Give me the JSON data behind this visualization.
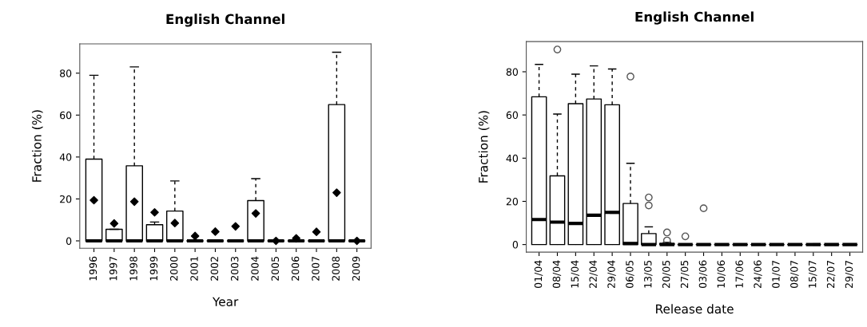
{
  "chart_data": [
    {
      "type": "box",
      "title": "English Channel",
      "xlabel": "Year",
      "ylabel": "Fraction (%)",
      "ylim": [
        -3.5,
        94
      ],
      "yticks": [
        0,
        20,
        40,
        60,
        80
      ],
      "grid": false,
      "categories": [
        "1996",
        "1997",
        "1998",
        "1999",
        "2000",
        "2001",
        "2002",
        "2003",
        "2004",
        "2005",
        "2006",
        "2007",
        "2008",
        "2009"
      ],
      "boxes": [
        {
          "q1": 0,
          "median": 0,
          "q3": 39,
          "high": 79,
          "mean": 19.4
        },
        {
          "q1": 0,
          "median": 0,
          "q3": 5.5,
          "high": 5.5,
          "mean": 8.3
        },
        {
          "q1": 0,
          "median": 0,
          "q3": 35.8,
          "high": 83,
          "mean": 18.7
        },
        {
          "q1": 0,
          "median": 0,
          "q3": 7.7,
          "high": 9,
          "mean": 13.6
        },
        {
          "q1": 0,
          "median": 0,
          "q3": 14.2,
          "high": 28.6,
          "mean": 8.5
        },
        {
          "q1": 0,
          "median": 0,
          "q3": 0,
          "high": 0,
          "mean": 2.3
        },
        {
          "q1": 0,
          "median": 0,
          "q3": 0,
          "high": 0,
          "mean": 4.4
        },
        {
          "q1": 0,
          "median": 0,
          "q3": 0,
          "high": 0,
          "mean": 6.9
        },
        {
          "q1": 0,
          "median": 0,
          "q3": 19.2,
          "high": 29.7,
          "mean": 13.1
        },
        {
          "q1": 0,
          "median": 0,
          "q3": 0,
          "high": 0,
          "mean": 0
        },
        {
          "q1": 0,
          "median": 0,
          "q3": 0,
          "high": 0,
          "mean": 1.2
        },
        {
          "q1": 0,
          "median": 0,
          "q3": 0,
          "high": 0,
          "mean": 4.3
        },
        {
          "q1": 0,
          "median": 0,
          "q3": 65,
          "high": 90,
          "mean": 23
        },
        {
          "q1": 0,
          "median": 0,
          "q3": 0,
          "high": 0,
          "mean": 0
        }
      ]
    },
    {
      "type": "box",
      "title": "English Channel",
      "xlabel": "Release date",
      "ylabel": "Fraction (%)",
      "ylim": [
        -3.5,
        94
      ],
      "yticks": [
        0,
        20,
        40,
        60,
        80
      ],
      "grid": false,
      "categories": [
        "01/04",
        "08/04",
        "15/04",
        "22/04",
        "29/04",
        "06/05",
        "13/05",
        "20/05",
        "27/05",
        "03/06",
        "10/06",
        "17/06",
        "24/06",
        "01/07",
        "08/07",
        "15/07",
        "22/07",
        "29/07"
      ],
      "boxes": [
        {
          "q1": 0,
          "median": 11.6,
          "q3": 68.4,
          "high": 83.4
        },
        {
          "q1": 0,
          "median": 10.4,
          "q3": 31.8,
          "high": 60.4,
          "outliers": [
            90.3
          ]
        },
        {
          "q1": 0,
          "median": 9.8,
          "q3": 65.2,
          "high": 78.9
        },
        {
          "q1": 0,
          "median": 13.6,
          "q3": 67.4,
          "high": 82.7
        },
        {
          "q1": 0,
          "median": 14.9,
          "q3": 64.7,
          "high": 81.3
        },
        {
          "q1": 0,
          "median": 0.5,
          "q3": 19,
          "high": 37.6,
          "outliers": [
            77.8
          ]
        },
        {
          "q1": 0,
          "median": 0,
          "q3": 5.1,
          "high": 8.2,
          "outliers": [
            21.8,
            18.1
          ]
        },
        {
          "q1": 0,
          "median": 0,
          "q3": 0.5,
          "high": 1,
          "outliers": [
            5.6,
            1.9
          ]
        },
        {
          "q1": 0,
          "median": 0,
          "q3": 0,
          "high": 0,
          "outliers": [
            3.8
          ]
        },
        {
          "q1": 0,
          "median": 0,
          "q3": 0,
          "high": 0,
          "outliers": [
            16.8
          ]
        },
        {
          "q1": 0,
          "median": 0,
          "q3": 0,
          "high": 0
        },
        {
          "q1": 0,
          "median": 0,
          "q3": 0,
          "high": 0
        },
        {
          "q1": 0,
          "median": 0,
          "q3": 0,
          "high": 0
        },
        {
          "q1": 0,
          "median": 0,
          "q3": 0,
          "high": 0
        },
        {
          "q1": 0,
          "median": 0,
          "q3": 0,
          "high": 0
        },
        {
          "q1": 0,
          "median": 0,
          "q3": 0,
          "high": 0
        },
        {
          "q1": 0,
          "median": 0,
          "q3": 0,
          "high": 0
        },
        {
          "q1": 0,
          "median": 0,
          "q3": 0,
          "high": 0
        }
      ]
    }
  ]
}
